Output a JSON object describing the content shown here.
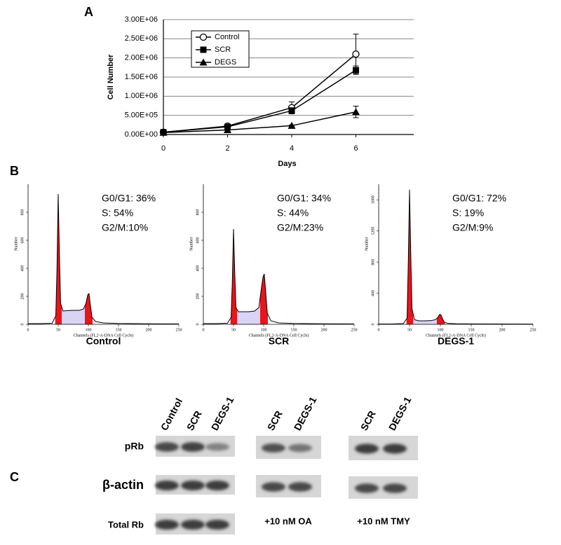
{
  "panel_labels": [
    "A",
    "B",
    "C"
  ],
  "chart_data": [
    {
      "type": "line",
      "xlabel": "Days",
      "ylabel": "Cell Number",
      "xlim": [
        0,
        8
      ],
      "xticks": [
        0,
        2,
        4,
        6
      ],
      "ylim": [
        0,
        3000000
      ],
      "yticks": [
        {
          "value": 0,
          "label": "0.00E+00"
        },
        {
          "value": 500000,
          "label": "5.00E+05"
        },
        {
          "value": 1000000,
          "label": "1.00E+06"
        },
        {
          "value": 1500000,
          "label": "1.50E+06"
        },
        {
          "value": 2000000,
          "label": "2.00E+06"
        },
        {
          "value": 2500000,
          "label": "2.50E+06"
        },
        {
          "value": 3000000,
          "label": "3.00E+06"
        }
      ],
      "grid": true,
      "legend": "upper left",
      "x": [
        0,
        2,
        4,
        6
      ],
      "series": [
        {
          "name": "Control",
          "color": "#000000",
          "marker": "circle-open",
          "values": [
            60000,
            220000,
            700000,
            2100000
          ],
          "errors": [
            10000,
            20000,
            150000,
            520000
          ]
        },
        {
          "name": "SCR",
          "color": "#000000",
          "marker": "square",
          "values": [
            60000,
            200000,
            620000,
            1680000
          ],
          "errors": [
            10000,
            20000,
            80000,
            110000
          ]
        },
        {
          "name": "DEGS",
          "color": "#000000",
          "marker": "triangle",
          "values": [
            50000,
            120000,
            230000,
            590000
          ],
          "errors": [
            10000,
            15000,
            20000,
            150000
          ]
        }
      ]
    },
    {
      "type": "flow",
      "caption": "Control",
      "xlabel": "Channels (FL2-A-DNA Cell Cycle)",
      "ylabel": "Number",
      "annotations": [
        "G0/G1: 36%",
        "S: 54%",
        "G2/M:10%"
      ],
      "xlim": [
        0,
        250
      ],
      "xticks": [
        0,
        50,
        100,
        150,
        200,
        250
      ],
      "ylim": [
        0,
        1000
      ],
      "yticks": [
        0,
        200,
        400,
        600,
        800
      ],
      "x": [
        0,
        20,
        40,
        46,
        48,
        50,
        52,
        54,
        58,
        65,
        75,
        85,
        92,
        96,
        99,
        101,
        103,
        106,
        112,
        125,
        150,
        200,
        250
      ],
      "values": [
        5,
        5,
        8,
        60,
        400,
        930,
        500,
        150,
        95,
        98,
        100,
        100,
        110,
        150,
        210,
        220,
        150,
        50,
        20,
        10,
        6,
        4,
        3
      ]
    },
    {
      "type": "flow",
      "caption": "SCR",
      "xlabel": "Channels (FL2-A-DNA Cell Cycle)",
      "ylabel": "Number",
      "annotations": [
        "G0/G1: 34%",
        "S: 44%",
        "G2/M:23%"
      ],
      "xlim": [
        0,
        250
      ],
      "xticks": [
        0,
        50,
        100,
        150,
        200,
        250
      ],
      "ylim": [
        0,
        1000
      ],
      "yticks": [
        0,
        200,
        400,
        600,
        800
      ],
      "x": [
        0,
        20,
        40,
        46,
        48,
        50,
        52,
        54,
        58,
        65,
        75,
        85,
        92,
        96,
        99,
        101,
        103,
        106,
        112,
        125,
        150,
        200,
        250
      ],
      "values": [
        5,
        5,
        8,
        50,
        300,
        680,
        380,
        120,
        90,
        90,
        90,
        95,
        120,
        250,
        340,
        360,
        250,
        80,
        25,
        10,
        6,
        4,
        3
      ]
    },
    {
      "type": "flow",
      "caption": "DEGS-1",
      "xlabel": "Channels (FL2-A-DNA Cell Cycle)",
      "ylabel": "Number",
      "annotations": [
        "G0/G1: 72%",
        "S: 19%",
        "G2/M:9%"
      ],
      "xlim": [
        0,
        250
      ],
      "xticks": [
        0,
        50,
        100,
        150,
        200,
        250
      ],
      "ylim": [
        0,
        1800
      ],
      "yticks": [
        0,
        400,
        800,
        1200,
        1600
      ],
      "x": [
        0,
        20,
        40,
        46,
        48,
        50,
        52,
        54,
        58,
        65,
        75,
        85,
        92,
        96,
        99,
        101,
        103,
        106,
        112,
        125,
        150,
        200,
        250
      ],
      "values": [
        5,
        5,
        10,
        80,
        800,
        1730,
        900,
        200,
        60,
        45,
        45,
        48,
        60,
        90,
        130,
        120,
        80,
        30,
        12,
        8,
        6,
        4,
        3
      ]
    }
  ],
  "blot": {
    "lanes": [
      [
        "Control",
        "SCR",
        "DEGS-1"
      ],
      [
        "SCR",
        "DEGS-1"
      ],
      [
        "SCR",
        "DEGS-1"
      ]
    ],
    "rows": [
      "pRb",
      "β-actin",
      "Total Rb"
    ],
    "treatments": [
      "+10 nM OA",
      "+10 nM TMY"
    ]
  }
}
